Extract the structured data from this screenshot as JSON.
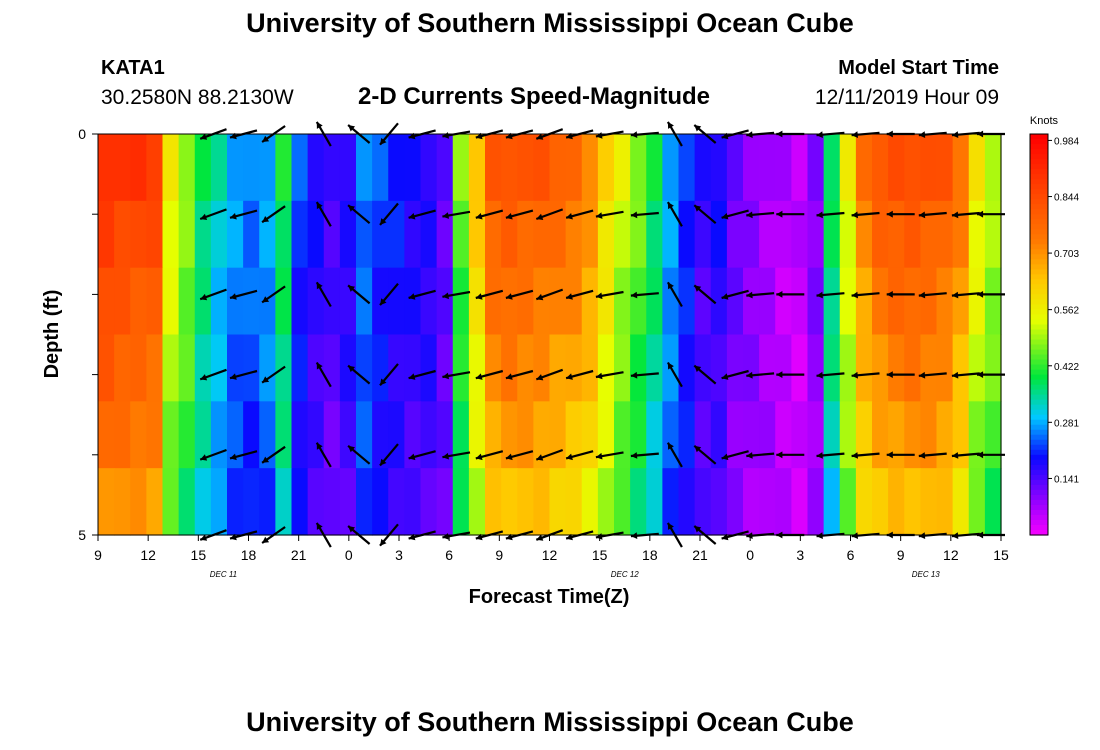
{
  "header": {
    "title": "University of Southern Mississippi Ocean Cube",
    "station": "KATA1",
    "coordinates": "30.2580N 88.2130W",
    "model_start_label": "Model Start Time",
    "model_start_time": "12/11/2019 Hour 09"
  },
  "footer": {
    "title": "University of Southern Mississippi Ocean Cube"
  },
  "chart_data": {
    "type": "heatmap",
    "title": "2-D Currents Speed-Magnitude",
    "xlabel": "Forecast Time(Z)",
    "ylabel": "Depth (ft)",
    "ylim": [
      0,
      5
    ],
    "yticks": [
      "0",
      "5"
    ],
    "xticks": [
      "9",
      "12",
      "15",
      "18",
      "21",
      "0",
      "3",
      "6",
      "9",
      "12",
      "15",
      "18",
      "21",
      "0",
      "3",
      "6",
      "9",
      "12",
      "15"
    ],
    "date_labels": [
      {
        "label": "DEC 11",
        "x_tick_index": 2.5
      },
      {
        "label": "DEC 12",
        "x_tick_index": 10.5
      },
      {
        "label": "DEC 13",
        "x_tick_index": 16.5
      }
    ],
    "colorbar": {
      "unit": "Knots",
      "ticks": [
        "0.141",
        "0.281",
        "0.422",
        "0.562",
        "0.703",
        "0.844",
        "0.984"
      ],
      "min": 0.0,
      "max": 1.0
    },
    "speed_profile_by_column": [
      0.88,
      0.86,
      0.85,
      0.84,
      0.55,
      0.48,
      0.38,
      0.32,
      0.27,
      0.25,
      0.28,
      0.4,
      0.22,
      0.18,
      0.15,
      0.18,
      0.26,
      0.22,
      0.2,
      0.18,
      0.18,
      0.14,
      0.45,
      0.62,
      0.78,
      0.8,
      0.79,
      0.78,
      0.76,
      0.74,
      0.7,
      0.6,
      0.52,
      0.46,
      0.38,
      0.28,
      0.22,
      0.16,
      0.18,
      0.12,
      0.1,
      0.08,
      0.06,
      0.05,
      0.1,
      0.38,
      0.55,
      0.72,
      0.78,
      0.8,
      0.81,
      0.8,
      0.78,
      0.72,
      0.56,
      0.5
    ],
    "depth_factors": [
      1.05,
      1.0,
      0.96,
      0.92,
      0.88,
      0.82
    ],
    "arrows": {
      "time_columns": [
        11.5,
        14.5,
        17.5,
        22.5,
        26,
        29,
        32.3,
        35.7,
        39,
        42,
        45,
        48,
        51,
        54.5,
        57.5,
        60.5,
        63.5,
        66,
        69,
        73,
        76.5,
        80,
        83.2,
        86.5,
        89
      ],
      "depth_rows": [
        0.0,
        1.0,
        2.0,
        3.0,
        4.0,
        5.0
      ],
      "directions_deg": [
        200,
        195,
        215,
        120,
        140,
        230,
        195,
        190,
        195,
        195,
        200,
        195,
        190,
        185,
        120,
        140,
        195,
        185,
        180,
        185,
        185,
        180,
        185,
        185,
        180
      ]
    }
  }
}
